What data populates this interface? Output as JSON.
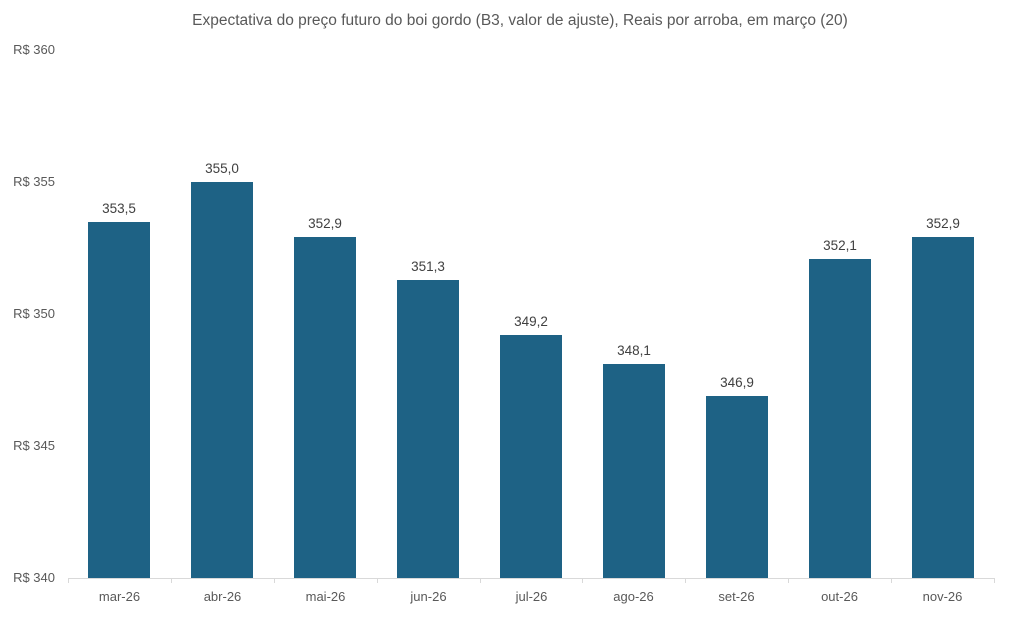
{
  "title": "Expectativa do preço futuro do boi gordo (B3, valor de ajuste), Reais por arroba, em março (20)",
  "colors": {
    "background": "#ffffff",
    "bar": "#1e6285",
    "axis_line": "#d9d9d9",
    "axis_text": "#595959",
    "value_label_text": "#404040"
  },
  "chart_data": {
    "type": "bar",
    "title": "Expectativa do preço futuro do boi gordo (B3, valor de ajuste), Reais por arroba, em março (20)",
    "categories": [
      "mar-26",
      "abr-26",
      "mai-26",
      "jun-26",
      "jul-26",
      "ago-26",
      "set-26",
      "out-26",
      "nov-26"
    ],
    "values": [
      353.5,
      355.0,
      352.9,
      351.3,
      349.2,
      348.1,
      346.9,
      352.1,
      352.9
    ],
    "value_labels": [
      "353,5",
      "355,0",
      "352,9",
      "351,3",
      "349,2",
      "348,1",
      "346,9",
      "352,1",
      "352,9"
    ],
    "xlabel": "",
    "ylabel": "",
    "ylim": [
      340,
      360
    ],
    "y_ticks": {
      "values": [
        360,
        355,
        350,
        345,
        340
      ],
      "labels": [
        "R$ 360",
        "R$ 355",
        "R$ 350",
        "R$ 345",
        "R$ 340"
      ]
    },
    "currency_prefix": "R$",
    "grid": false,
    "legend": false,
    "bar_color": "#1e6285"
  }
}
